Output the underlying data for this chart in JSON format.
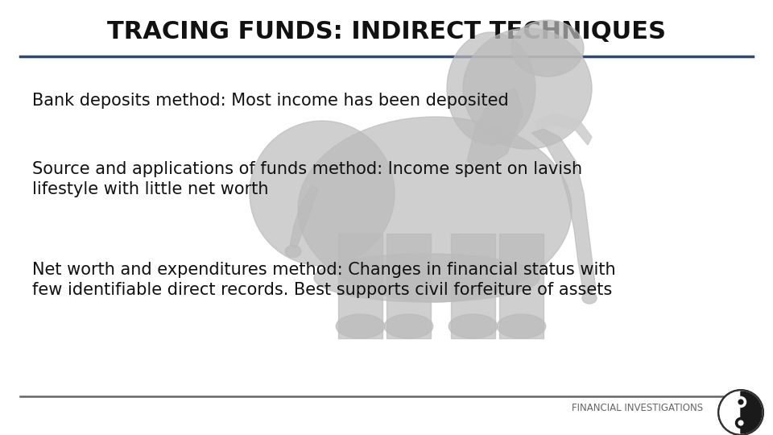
{
  "title": "TRACING FUNDS: INDIRECT TECHNIQUES",
  "title_color": "#111111",
  "title_fontsize": 22,
  "bg_color": "#ffffff",
  "top_line_color": "#2e4a7a",
  "bottom_line_color": "#666666",
  "bullet1": "Bank deposits method: Most income has been deposited",
  "bullet2_line1": "Source and applications of funds method: Income spent on lavish",
  "bullet2_line2": "lifestyle with little net worth",
  "bullet3_line1": "Net worth and expenditures method: Changes in financial status with",
  "bullet3_line2": "few identifiable direct records. Best supports civil forfeiture of assets",
  "footer_text": "FINANCIAL INVESTIGATIONS",
  "footer_color": "#666666",
  "footer_fontsize": 8.5,
  "text_color": "#111111",
  "text_fontsize": 15,
  "elephant_color": "#bbbbbb",
  "elephant_alpha": 0.7
}
